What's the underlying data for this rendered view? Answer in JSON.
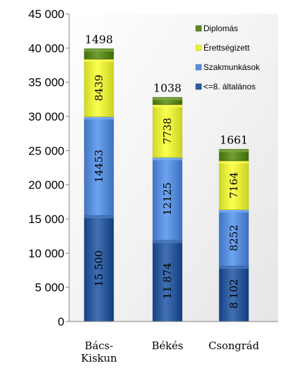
{
  "chart_data": {
    "type": "bar",
    "stacked": true,
    "categories": [
      "Bács-\nKiskun",
      "Békés",
      "Csongrád"
    ],
    "series": [
      {
        "name": "<=8. általános",
        "values": [
          15500,
          11874,
          8102
        ],
        "labels": [
          "15 500",
          "11 874",
          "8 102"
        ],
        "color": "#2E5C9E"
      },
      {
        "name": "Szakmunkások",
        "values": [
          14453,
          12125,
          8252
        ],
        "labels": [
          "14453",
          "12125",
          "8252"
        ],
        "color": "#5A8FDB"
      },
      {
        "name": "Érettségizett",
        "values": [
          8439,
          7738,
          7164
        ],
        "labels": [
          "8439",
          "7738",
          "7164"
        ],
        "color": "#E8F23E"
      },
      {
        "name": "Diplomás",
        "values": [
          1498,
          1038,
          1661
        ],
        "labels": [
          "1498",
          "1038",
          "1661"
        ],
        "color": "#5E8A22"
      }
    ],
    "ylim": [
      0,
      45000
    ],
    "yticks": [
      0,
      5000,
      10000,
      15000,
      20000,
      25000,
      30000,
      35000,
      40000,
      45000
    ],
    "ytick_labels": [
      "0",
      "5 000",
      "10 000",
      "15 000",
      "20 000",
      "25 000",
      "30 000",
      "35 000",
      "40 000",
      "45 000"
    ],
    "legend_order": [
      "Diplomás",
      "Érettségizett",
      "Szakmunkások",
      "<=8. általános"
    ],
    "legend_position": "top-right",
    "grid": false
  }
}
